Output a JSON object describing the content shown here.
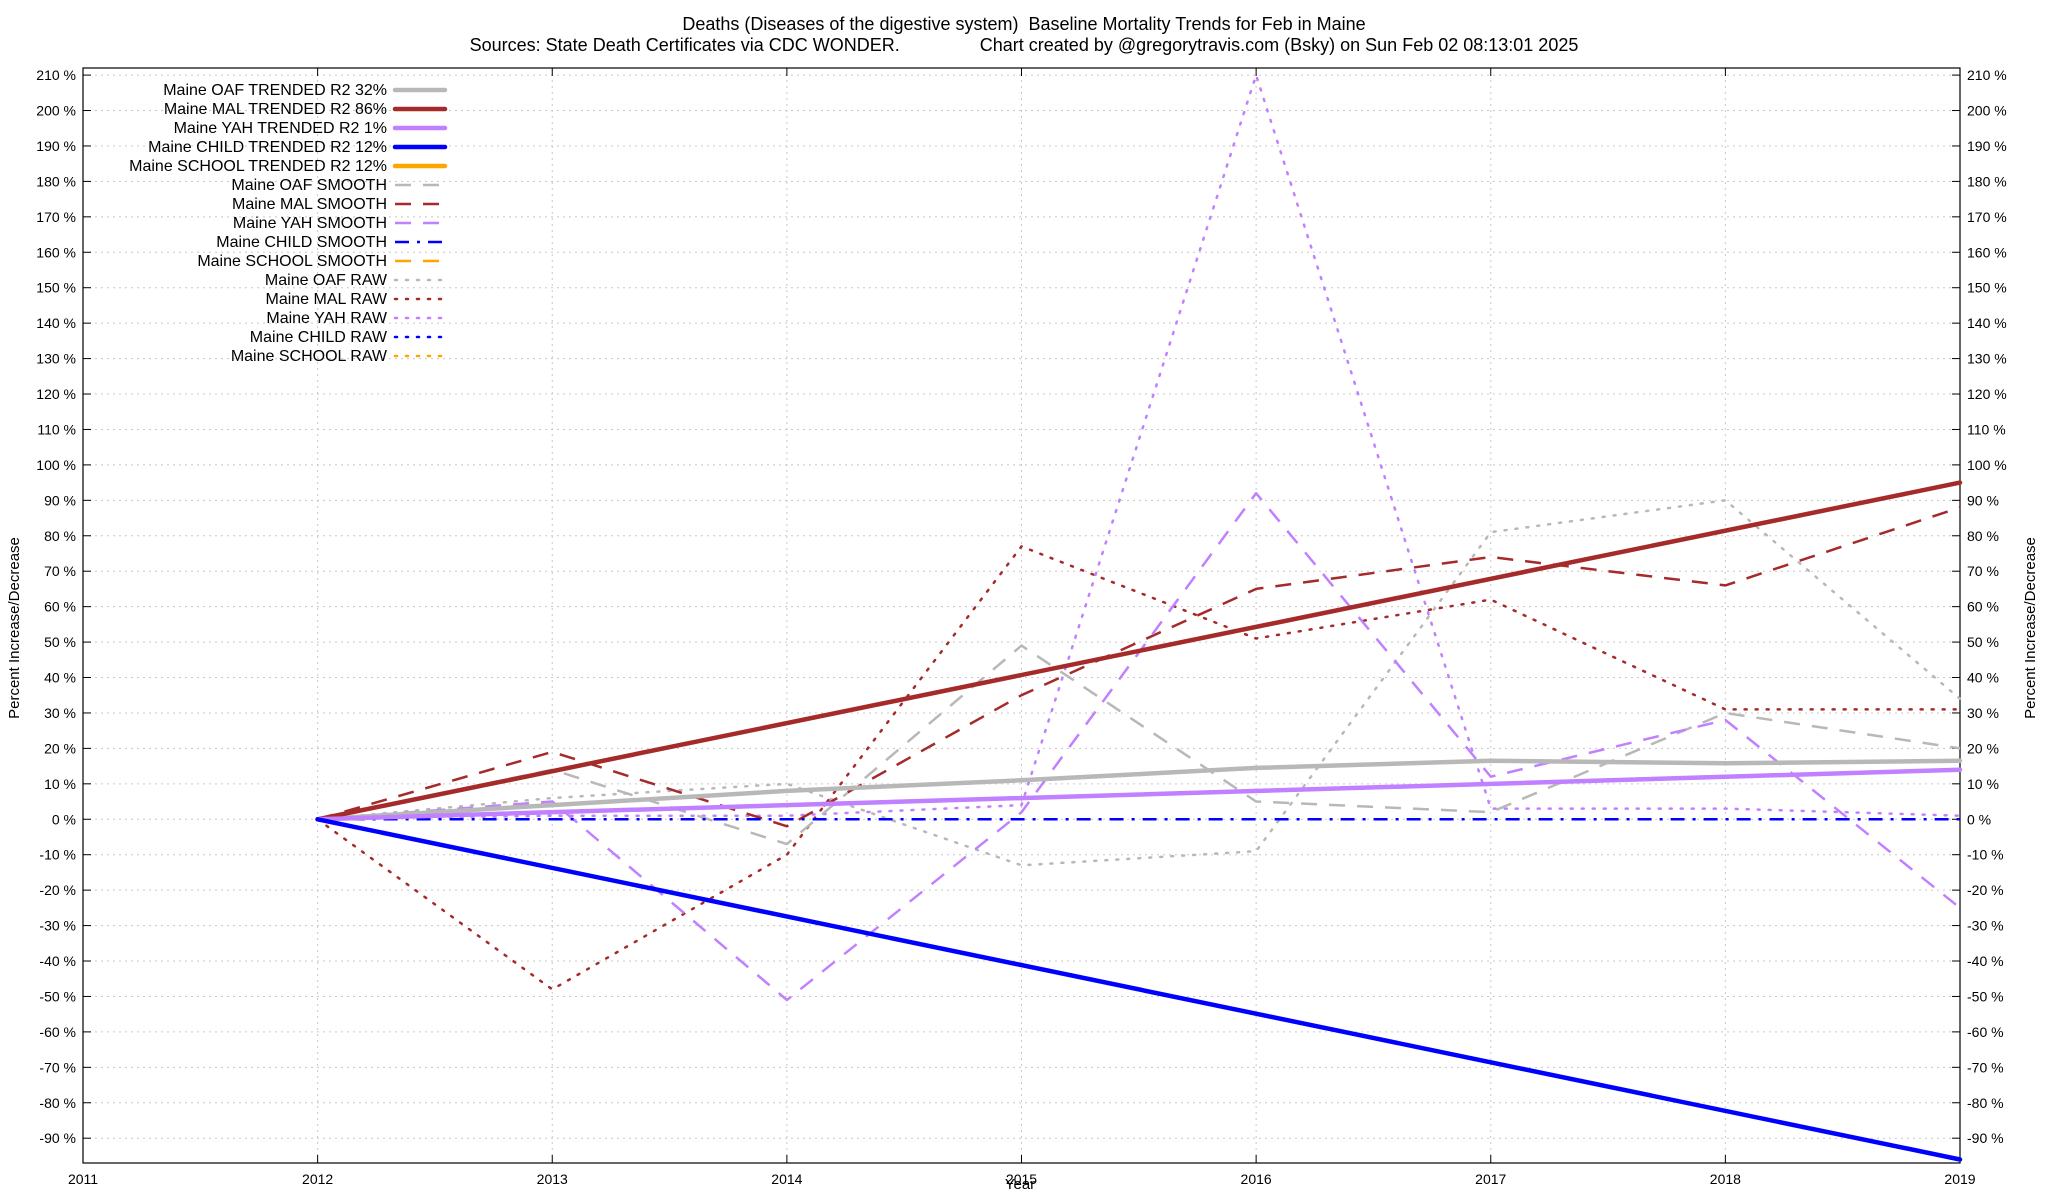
{
  "chart_data": {
    "type": "line",
    "title": "Deaths (Diseases of the digestive system)  Baseline Mortality Trends for Feb in Maine",
    "subtitle": "Sources: State Death Certificates via CDC WONDER.                Chart created by @gregorytravis.com (Bsky) on Sun Feb 02 08:13:01 2025",
    "xlabel": "Year",
    "ylabel": "Percent Increase/Decrease",
    "y2label": "Percent Increase/Decrease",
    "xlim": [
      2011,
      2019
    ],
    "ylim": [
      -97,
      212
    ],
    "xticks": [
      "2011",
      "2012",
      "2013",
      "2014",
      "2015",
      "2016",
      "2017",
      "2018",
      "2019"
    ],
    "yticks": [
      "210 %",
      "200 %",
      "190 %",
      "180 %",
      "170 %",
      "160 %",
      "150 %",
      "140 %",
      "130 %",
      "120 %",
      "110 %",
      "100 %",
      "90 %",
      "80 %",
      "70 %",
      "60 %",
      "50 %",
      "40 %",
      "30 %",
      "20 %",
      "10 %",
      "0 %",
      "-10 %",
      "-20 %",
      "-30 %",
      "-40 %",
      "-50 %",
      "-60 %",
      "-70 %",
      "-80 %",
      "-90 %"
    ],
    "ytick_values": [
      210,
      200,
      190,
      180,
      170,
      160,
      150,
      140,
      130,
      120,
      110,
      100,
      90,
      80,
      70,
      60,
      50,
      40,
      30,
      20,
      10,
      0,
      -10,
      -20,
      -30,
      -40,
      -50,
      -60,
      -70,
      -80,
      -90
    ],
    "grid": true,
    "legend_position": "top-left",
    "series": [
      {
        "name": "Maine OAF TRENDED R2  32%",
        "style": "solid",
        "color": "#b8b8b8",
        "x": [
          2012,
          2013,
          2014,
          2015,
          2016,
          2017,
          2018,
          2019
        ],
        "y": [
          0,
          4,
          8,
          11,
          14.5,
          16.5,
          15.8,
          16.5
        ]
      },
      {
        "name": "Maine MAL TRENDED R2  86%",
        "style": "solid",
        "color": "#a52a2a",
        "x": [
          2012,
          2019
        ],
        "y": [
          0,
          95
        ]
      },
      {
        "name": "Maine YAH TRENDED R2  1%",
        "style": "solid",
        "color": "#c080ff",
        "x": [
          2012,
          2019
        ],
        "y": [
          0,
          14
        ]
      },
      {
        "name": "Maine CHILD TRENDED R2  12%",
        "style": "solid",
        "color": "#0000ff",
        "x": [
          2012,
          2019
        ],
        "y": [
          0,
          -96
        ]
      },
      {
        "name": "Maine SCHOOL TRENDED R2  12%",
        "style": "solid",
        "color": "#ffa500",
        "x": [],
        "y": []
      },
      {
        "name": "Maine OAF SMOOTH",
        "style": "dashed",
        "color": "#b8b8b8",
        "x": [
          2012,
          2013,
          2014,
          2015,
          2016,
          2017,
          2018,
          2019
        ],
        "y": [
          0,
          14,
          -7,
          49,
          5,
          2,
          30,
          20
        ]
      },
      {
        "name": "Maine MAL SMOOTH",
        "style": "dashed",
        "color": "#a52a2a",
        "x": [
          2012,
          2013,
          2014,
          2015,
          2016,
          2017,
          2018,
          2019
        ],
        "y": [
          0,
          19,
          -2,
          35,
          65,
          74,
          66,
          88
        ]
      },
      {
        "name": "Maine YAH SMOOTH",
        "style": "dashed",
        "color": "#c080ff",
        "x": [
          2012,
          2013,
          2014,
          2015,
          2016,
          2017,
          2018,
          2019
        ],
        "y": [
          0,
          5,
          -51,
          2,
          92,
          12,
          28,
          -25
        ]
      },
      {
        "name": "Maine CHILD SMOOTH",
        "style": "dashdot",
        "color": "#0000ff",
        "x": [
          2012,
          2019
        ],
        "y": [
          0,
          0
        ]
      },
      {
        "name": "Maine SCHOOL SMOOTH",
        "style": "dashed",
        "color": "#ffa500",
        "x": [],
        "y": []
      },
      {
        "name": "Maine OAF RAW",
        "style": "dotted",
        "color": "#b8b8b8",
        "x": [
          2012,
          2013,
          2014,
          2015,
          2016,
          2017,
          2018,
          2019
        ],
        "y": [
          0,
          6,
          10,
          -13,
          -9,
          81,
          90,
          34
        ]
      },
      {
        "name": "Maine MAL RAW",
        "style": "dotted",
        "color": "#a52a2a",
        "x": [
          2012,
          2013,
          2014,
          2015,
          2016,
          2017,
          2018,
          2019
        ],
        "y": [
          0,
          -48,
          -10,
          77,
          51,
          62,
          31,
          31
        ]
      },
      {
        "name": "Maine YAH RAW",
        "style": "dotted",
        "color": "#c080ff",
        "x": [
          2012,
          2013,
          2014,
          2015,
          2016,
          2017,
          2018,
          2019
        ],
        "y": [
          0,
          1,
          1,
          4,
          210,
          3,
          3,
          1
        ]
      },
      {
        "name": "Maine CHILD RAW",
        "style": "dotted",
        "color": "#0000ff",
        "x": [],
        "y": []
      },
      {
        "name": "Maine SCHOOL RAW",
        "style": "dotted",
        "color": "#ffa500",
        "x": [],
        "y": []
      }
    ]
  }
}
